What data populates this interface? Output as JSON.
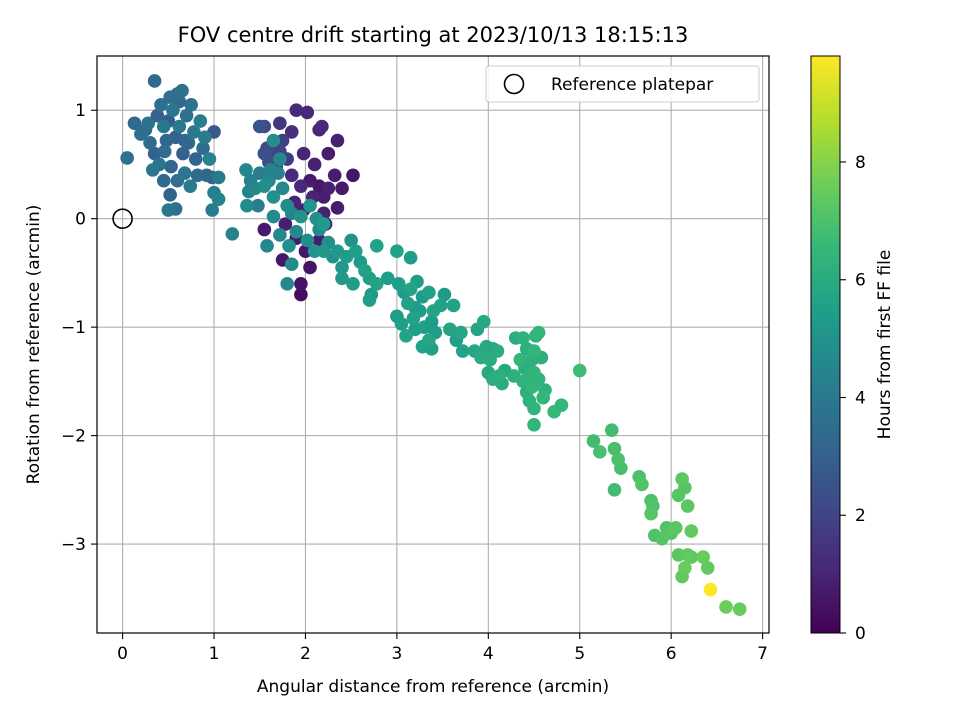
{
  "chart_data": {
    "type": "scatter",
    "title": "FOV centre drift starting at 2023/10/13 18:15:13",
    "xlabel": "Angular distance from reference (arcmin)",
    "ylabel": "Rotation from reference (arcmin)",
    "xlim": [
      -0.28,
      7.07
    ],
    "ylim": [
      -3.82,
      1.5
    ],
    "xticks": [
      0,
      1,
      2,
      3,
      4,
      5,
      6,
      7
    ],
    "yticks": [
      1,
      0,
      -1,
      -2,
      -3
    ],
    "grid": true,
    "legend": {
      "position": "top-right",
      "entries": [
        {
          "label": "Reference platepar",
          "marker": "open-circle"
        }
      ]
    },
    "reference_point": {
      "x": 0,
      "y": 0
    },
    "colorbar": {
      "label": "Hours from first FF file",
      "colormap": "viridis",
      "range": [
        0,
        9.8
      ],
      "ticks": [
        0,
        2,
        4,
        6,
        8
      ]
    },
    "points": [
      {
        "x": 0.35,
        "y": 1.27,
        "h": 3.3
      },
      {
        "x": 0.6,
        "y": 1.15,
        "h": 3.6
      },
      {
        "x": 0.65,
        "y": 1.18,
        "h": 3.7
      },
      {
        "x": 0.13,
        "y": 0.88,
        "h": 3.4
      },
      {
        "x": 0.05,
        "y": 0.56,
        "h": 3.6
      },
      {
        "x": 0.25,
        "y": 0.82,
        "h": 3.2
      },
      {
        "x": 0.3,
        "y": 0.7,
        "h": 3.4
      },
      {
        "x": 0.38,
        "y": 0.95,
        "h": 3.0
      },
      {
        "x": 0.42,
        "y": 1.05,
        "h": 3.5
      },
      {
        "x": 0.5,
        "y": 0.9,
        "h": 2.9
      },
      {
        "x": 0.55,
        "y": 1.0,
        "h": 3.8
      },
      {
        "x": 0.58,
        "y": 0.75,
        "h": 3.1
      },
      {
        "x": 0.62,
        "y": 0.85,
        "h": 3.9
      },
      {
        "x": 0.66,
        "y": 0.6,
        "h": 3.0
      },
      {
        "x": 0.7,
        "y": 0.95,
        "h": 3.6
      },
      {
        "x": 0.72,
        "y": 0.7,
        "h": 3.3
      },
      {
        "x": 0.75,
        "y": 1.05,
        "h": 3.7
      },
      {
        "x": 0.78,
        "y": 0.8,
        "h": 4.0
      },
      {
        "x": 0.8,
        "y": 0.55,
        "h": 3.2
      },
      {
        "x": 0.85,
        "y": 0.9,
        "h": 4.2
      },
      {
        "x": 0.88,
        "y": 0.65,
        "h": 3.5
      },
      {
        "x": 0.9,
        "y": 0.75,
        "h": 4.1
      },
      {
        "x": 0.92,
        "y": 0.4,
        "h": 3.3
      },
      {
        "x": 0.95,
        "y": 0.55,
        "h": 4.3
      },
      {
        "x": 0.98,
        "y": 0.38,
        "h": 3.0
      },
      {
        "x": 1.0,
        "y": 0.8,
        "h": 2.7
      },
      {
        "x": 1.05,
        "y": 0.38,
        "h": 4.0
      },
      {
        "x": 1.0,
        "y": 0.24,
        "h": 4.2
      },
      {
        "x": 0.98,
        "y": 0.08,
        "h": 4.1
      },
      {
        "x": 1.05,
        "y": 0.18,
        "h": 4.4
      },
      {
        "x": 0.58,
        "y": 0.09,
        "h": 3.6
      },
      {
        "x": 0.5,
        "y": 0.08,
        "h": 3.8
      },
      {
        "x": 0.52,
        "y": 0.22,
        "h": 3.1
      },
      {
        "x": 0.45,
        "y": 0.35,
        "h": 3.4
      },
      {
        "x": 0.4,
        "y": 0.5,
        "h": 3.7
      },
      {
        "x": 0.33,
        "y": 0.45,
        "h": 3.9
      },
      {
        "x": 0.46,
        "y": 0.62,
        "h": 3.5
      },
      {
        "x": 0.53,
        "y": 0.48,
        "h": 3.2
      },
      {
        "x": 0.6,
        "y": 0.35,
        "h": 3.6
      },
      {
        "x": 0.68,
        "y": 0.42,
        "h": 3.8
      },
      {
        "x": 0.74,
        "y": 0.3,
        "h": 4.0
      },
      {
        "x": 0.82,
        "y": 0.4,
        "h": 3.4
      },
      {
        "x": 0.48,
        "y": 0.72,
        "h": 3.3
      },
      {
        "x": 0.35,
        "y": 0.6,
        "h": 3.0
      },
      {
        "x": 0.2,
        "y": 0.78,
        "h": 3.5
      },
      {
        "x": 0.28,
        "y": 0.88,
        "h": 3.7
      },
      {
        "x": 0.45,
        "y": 0.85,
        "h": 3.9
      },
      {
        "x": 0.62,
        "y": 1.08,
        "h": 3.4
      },
      {
        "x": 0.68,
        "y": 0.72,
        "h": 3.2
      },
      {
        "x": 0.52,
        "y": 1.12,
        "h": 3.6
      },
      {
        "x": 1.2,
        "y": -0.14,
        "h": 4.4
      },
      {
        "x": 1.58,
        "y": 0.65,
        "h": 2.2
      },
      {
        "x": 1.65,
        "y": 0.7,
        "h": 1.9
      },
      {
        "x": 1.72,
        "y": 0.62,
        "h": 2.0
      },
      {
        "x": 1.8,
        "y": 0.55,
        "h": 1.7
      },
      {
        "x": 1.6,
        "y": 0.52,
        "h": 2.3
      },
      {
        "x": 1.68,
        "y": 0.48,
        "h": 2.1
      },
      {
        "x": 1.55,
        "y": 0.6,
        "h": 2.4
      },
      {
        "x": 1.75,
        "y": 0.72,
        "h": 1.8
      },
      {
        "x": 1.62,
        "y": 0.58,
        "h": 2.0
      },
      {
        "x": 1.5,
        "y": 0.85,
        "h": 2.5
      },
      {
        "x": 1.55,
        "y": 0.85,
        "h": 2.2
      },
      {
        "x": 1.72,
        "y": 0.88,
        "h": 1.5
      },
      {
        "x": 1.85,
        "y": 0.8,
        "h": 1.3
      },
      {
        "x": 1.9,
        "y": 1.0,
        "h": 1.2
      },
      {
        "x": 2.02,
        "y": 0.98,
        "h": 1.1
      },
      {
        "x": 2.15,
        "y": 0.82,
        "h": 1.0
      },
      {
        "x": 2.18,
        "y": 0.85,
        "h": 1.2
      },
      {
        "x": 2.35,
        "y": 0.72,
        "h": 0.9
      },
      {
        "x": 2.25,
        "y": 0.6,
        "h": 0.8
      },
      {
        "x": 1.98,
        "y": 0.6,
        "h": 1.0
      },
      {
        "x": 2.1,
        "y": 0.5,
        "h": 0.9
      },
      {
        "x": 2.05,
        "y": 0.35,
        "h": 0.7
      },
      {
        "x": 2.15,
        "y": 0.3,
        "h": 0.6
      },
      {
        "x": 2.2,
        "y": 0.2,
        "h": 0.8
      },
      {
        "x": 2.25,
        "y": 0.28,
        "h": 0.9
      },
      {
        "x": 2.32,
        "y": 0.4,
        "h": 0.8
      },
      {
        "x": 2.4,
        "y": 0.28,
        "h": 0.7
      },
      {
        "x": 2.52,
        "y": 0.4,
        "h": 0.6
      },
      {
        "x": 2.35,
        "y": 0.1,
        "h": 0.8
      },
      {
        "x": 2.2,
        "y": 0.05,
        "h": 0.9
      },
      {
        "x": 2.08,
        "y": 0.2,
        "h": 1.0
      },
      {
        "x": 1.95,
        "y": 0.3,
        "h": 1.1
      },
      {
        "x": 1.85,
        "y": 0.4,
        "h": 1.2
      },
      {
        "x": 1.88,
        "y": 0.15,
        "h": 1.0
      },
      {
        "x": 1.98,
        "y": 0.08,
        "h": 0.9
      },
      {
        "x": 1.78,
        "y": -0.05,
        "h": 0.8
      },
      {
        "x": 1.9,
        "y": -0.18,
        "h": 0.7
      },
      {
        "x": 2.0,
        "y": -0.3,
        "h": 0.6
      },
      {
        "x": 2.15,
        "y": -0.2,
        "h": 0.8
      },
      {
        "x": 2.22,
        "y": -0.05,
        "h": 0.7
      },
      {
        "x": 2.05,
        "y": -0.45,
        "h": 0.5
      },
      {
        "x": 1.95,
        "y": -0.7,
        "h": 0.4
      },
      {
        "x": 1.75,
        "y": -0.38,
        "h": 0.6
      },
      {
        "x": 1.55,
        "y": -0.1,
        "h": 0.7
      },
      {
        "x": 1.95,
        "y": -0.6,
        "h": 0.5
      },
      {
        "x": 1.35,
        "y": 0.45,
        "h": 4.5
      },
      {
        "x": 1.4,
        "y": 0.35,
        "h": 4.3
      },
      {
        "x": 1.45,
        "y": 0.28,
        "h": 4.6
      },
      {
        "x": 1.5,
        "y": 0.42,
        "h": 4.2
      },
      {
        "x": 1.38,
        "y": 0.25,
        "h": 4.4
      },
      {
        "x": 1.36,
        "y": 0.12,
        "h": 4.7
      },
      {
        "x": 1.48,
        "y": 0.12,
        "h": 4.1
      },
      {
        "x": 1.55,
        "y": 0.3,
        "h": 4.8
      },
      {
        "x": 1.6,
        "y": 0.35,
        "h": 4.5
      },
      {
        "x": 1.65,
        "y": 0.2,
        "h": 4.9
      },
      {
        "x": 1.7,
        "y": 0.42,
        "h": 4.3
      },
      {
        "x": 1.75,
        "y": 0.28,
        "h": 4.6
      },
      {
        "x": 1.8,
        "y": 0.12,
        "h": 4.8
      },
      {
        "x": 1.85,
        "y": 0.05,
        "h": 4.4
      },
      {
        "x": 1.65,
        "y": 0.02,
        "h": 4.7
      },
      {
        "x": 1.72,
        "y": -0.15,
        "h": 4.5
      },
      {
        "x": 1.82,
        "y": -0.25,
        "h": 4.9
      },
      {
        "x": 1.9,
        "y": -0.12,
        "h": 4.6
      },
      {
        "x": 1.95,
        "y": 0.02,
        "h": 5.0
      },
      {
        "x": 2.02,
        "y": -0.2,
        "h": 4.8
      },
      {
        "x": 2.1,
        "y": -0.3,
        "h": 5.1
      },
      {
        "x": 2.15,
        "y": -0.1,
        "h": 4.7
      },
      {
        "x": 2.2,
        "y": -0.3,
        "h": 5.2
      },
      {
        "x": 2.25,
        "y": -0.22,
        "h": 4.9
      },
      {
        "x": 2.3,
        "y": -0.35,
        "h": 5.0
      },
      {
        "x": 1.62,
        "y": 0.45,
        "h": 4.4
      },
      {
        "x": 1.72,
        "y": 0.55,
        "h": 4.6
      },
      {
        "x": 1.65,
        "y": 0.72,
        "h": 4.8
      },
      {
        "x": 2.05,
        "y": 0.12,
        "h": 5.1
      },
      {
        "x": 2.2,
        "y": -0.05,
        "h": 5.3
      },
      {
        "x": 1.85,
        "y": -0.42,
        "h": 4.7
      },
      {
        "x": 1.58,
        "y": -0.25,
        "h": 4.5
      },
      {
        "x": 1.8,
        "y": -0.6,
        "h": 4.6
      },
      {
        "x": 2.12,
        "y": 0.0,
        "h": 4.9
      },
      {
        "x": 2.35,
        "y": -0.3,
        "h": 5.3
      },
      {
        "x": 2.4,
        "y": -0.45,
        "h": 5.2
      },
      {
        "x": 2.45,
        "y": -0.35,
        "h": 5.4
      },
      {
        "x": 2.5,
        "y": -0.2,
        "h": 5.0
      },
      {
        "x": 2.55,
        "y": -0.3,
        "h": 5.5
      },
      {
        "x": 2.6,
        "y": -0.4,
        "h": 5.3
      },
      {
        "x": 2.65,
        "y": -0.48,
        "h": 5.6
      },
      {
        "x": 2.52,
        "y": -0.6,
        "h": 5.4
      },
      {
        "x": 2.4,
        "y": -0.55,
        "h": 5.2
      },
      {
        "x": 2.7,
        "y": -0.55,
        "h": 5.5
      },
      {
        "x": 2.78,
        "y": -0.25,
        "h": 5.6
      },
      {
        "x": 2.9,
        "y": -0.55,
        "h": 5.4
      },
      {
        "x": 2.72,
        "y": -0.7,
        "h": 5.3
      },
      {
        "x": 2.78,
        "y": -0.6,
        "h": 5.7
      },
      {
        "x": 2.7,
        "y": -0.75,
        "h": 5.5
      },
      {
        "x": 3.0,
        "y": -0.3,
        "h": 5.6
      },
      {
        "x": 3.15,
        "y": -0.36,
        "h": 5.4
      },
      {
        "x": 3.02,
        "y": -0.6,
        "h": 5.5
      },
      {
        "x": 3.08,
        "y": -0.68,
        "h": 5.3
      },
      {
        "x": 3.12,
        "y": -0.78,
        "h": 5.6
      },
      {
        "x": 3.2,
        "y": -0.82,
        "h": 5.4
      },
      {
        "x": 3.15,
        "y": -0.65,
        "h": 5.7
      },
      {
        "x": 3.22,
        "y": -0.58,
        "h": 5.5
      },
      {
        "x": 3.28,
        "y": -0.72,
        "h": 5.3
      },
      {
        "x": 3.35,
        "y": -0.68,
        "h": 5.6
      },
      {
        "x": 3.0,
        "y": -0.9,
        "h": 5.4
      },
      {
        "x": 3.05,
        "y": -0.97,
        "h": 5.5
      },
      {
        "x": 3.1,
        "y": -1.08,
        "h": 5.7
      },
      {
        "x": 3.18,
        "y": -0.92,
        "h": 5.6
      },
      {
        "x": 3.25,
        "y": -0.85,
        "h": 5.4
      },
      {
        "x": 3.3,
        "y": -1.0,
        "h": 5.5
      },
      {
        "x": 3.38,
        "y": -0.95,
        "h": 5.3
      },
      {
        "x": 3.28,
        "y": -1.18,
        "h": 5.6
      },
      {
        "x": 3.35,
        "y": -1.12,
        "h": 5.8
      },
      {
        "x": 3.38,
        "y": -1.2,
        "h": 5.5
      },
      {
        "x": 3.4,
        "y": -0.85,
        "h": 5.7
      },
      {
        "x": 3.42,
        "y": -1.05,
        "h": 5.4
      },
      {
        "x": 3.48,
        "y": -0.8,
        "h": 5.6
      },
      {
        "x": 3.2,
        "y": -1.02,
        "h": 5.5
      },
      {
        "x": 3.52,
        "y": -0.7,
        "h": 5.3
      },
      {
        "x": 3.62,
        "y": -0.8,
        "h": 5.6
      },
      {
        "x": 3.58,
        "y": -1.02,
        "h": 5.7
      },
      {
        "x": 3.65,
        "y": -1.12,
        "h": 5.5
      },
      {
        "x": 3.72,
        "y": -1.22,
        "h": 5.6
      },
      {
        "x": 3.7,
        "y": -1.05,
        "h": 5.8
      },
      {
        "x": 3.88,
        "y": -1.02,
        "h": 5.7
      },
      {
        "x": 3.95,
        "y": -0.95,
        "h": 5.9
      },
      {
        "x": 3.85,
        "y": -1.22,
        "h": 5.8
      },
      {
        "x": 3.92,
        "y": -1.28,
        "h": 6.0
      },
      {
        "x": 3.98,
        "y": -1.18,
        "h": 5.9
      },
      {
        "x": 4.02,
        "y": -1.3,
        "h": 6.1
      },
      {
        "x": 4.05,
        "y": -1.2,
        "h": 5.8
      },
      {
        "x": 4.1,
        "y": -1.22,
        "h": 6.0
      },
      {
        "x": 4.0,
        "y": -1.42,
        "h": 5.9
      },
      {
        "x": 4.05,
        "y": -1.48,
        "h": 6.1
      },
      {
        "x": 4.12,
        "y": -1.45,
        "h": 6.2
      },
      {
        "x": 4.18,
        "y": -1.4,
        "h": 5.9
      },
      {
        "x": 4.15,
        "y": -1.52,
        "h": 6.0
      },
      {
        "x": 4.28,
        "y": -1.45,
        "h": 6.2
      },
      {
        "x": 4.3,
        "y": -1.1,
        "h": 6.1
      },
      {
        "x": 4.38,
        "y": -1.1,
        "h": 6.3
      },
      {
        "x": 4.42,
        "y": -1.2,
        "h": 6.2
      },
      {
        "x": 4.35,
        "y": -1.3,
        "h": 6.4
      },
      {
        "x": 4.4,
        "y": -1.38,
        "h": 6.1
      },
      {
        "x": 4.45,
        "y": -1.45,
        "h": 6.3
      },
      {
        "x": 4.48,
        "y": -1.3,
        "h": 6.2
      },
      {
        "x": 4.5,
        "y": -1.22,
        "h": 6.4
      },
      {
        "x": 4.52,
        "y": -1.08,
        "h": 6.3
      },
      {
        "x": 4.55,
        "y": -1.05,
        "h": 6.5
      },
      {
        "x": 4.58,
        "y": -1.28,
        "h": 6.2
      },
      {
        "x": 4.5,
        "y": -1.42,
        "h": 6.4
      },
      {
        "x": 4.55,
        "y": -1.48,
        "h": 6.3
      },
      {
        "x": 4.48,
        "y": -1.55,
        "h": 6.5
      },
      {
        "x": 4.42,
        "y": -1.6,
        "h": 6.2
      },
      {
        "x": 4.45,
        "y": -1.68,
        "h": 6.3
      },
      {
        "x": 4.5,
        "y": -1.75,
        "h": 6.4
      },
      {
        "x": 4.6,
        "y": -1.65,
        "h": 6.5
      },
      {
        "x": 4.62,
        "y": -1.58,
        "h": 6.3
      },
      {
        "x": 4.72,
        "y": -1.78,
        "h": 6.6
      },
      {
        "x": 4.8,
        "y": -1.72,
        "h": 6.5
      },
      {
        "x": 4.5,
        "y": -1.9,
        "h": 6.4
      },
      {
        "x": 4.38,
        "y": -1.5,
        "h": 6.3
      },
      {
        "x": 5.0,
        "y": -1.4,
        "h": 6.7
      },
      {
        "x": 5.15,
        "y": -2.05,
        "h": 6.8
      },
      {
        "x": 5.22,
        "y": -2.15,
        "h": 6.9
      },
      {
        "x": 5.35,
        "y": -1.95,
        "h": 6.8
      },
      {
        "x": 5.38,
        "y": -2.12,
        "h": 6.9
      },
      {
        "x": 5.42,
        "y": -2.22,
        "h": 7.0
      },
      {
        "x": 5.45,
        "y": -2.3,
        "h": 6.9
      },
      {
        "x": 5.38,
        "y": -2.5,
        "h": 6.8
      },
      {
        "x": 5.65,
        "y": -2.38,
        "h": 7.0
      },
      {
        "x": 5.68,
        "y": -2.45,
        "h": 7.1
      },
      {
        "x": 5.78,
        "y": -2.6,
        "h": 7.0
      },
      {
        "x": 5.8,
        "y": -2.65,
        "h": 7.1
      },
      {
        "x": 5.78,
        "y": -2.72,
        "h": 7.2
      },
      {
        "x": 5.82,
        "y": -2.92,
        "h": 7.1
      },
      {
        "x": 5.9,
        "y": -2.95,
        "h": 7.2
      },
      {
        "x": 5.95,
        "y": -2.85,
        "h": 7.1
      },
      {
        "x": 6.0,
        "y": -2.9,
        "h": 7.2
      },
      {
        "x": 6.05,
        "y": -2.85,
        "h": 7.3
      },
      {
        "x": 6.08,
        "y": -2.55,
        "h": 7.2
      },
      {
        "x": 6.12,
        "y": -2.4,
        "h": 7.3
      },
      {
        "x": 6.15,
        "y": -2.48,
        "h": 7.2
      },
      {
        "x": 6.18,
        "y": -2.65,
        "h": 7.3
      },
      {
        "x": 6.22,
        "y": -2.88,
        "h": 7.4
      },
      {
        "x": 6.08,
        "y": -3.1,
        "h": 7.3
      },
      {
        "x": 6.18,
        "y": -3.1,
        "h": 7.4
      },
      {
        "x": 6.22,
        "y": -3.12,
        "h": 7.3
      },
      {
        "x": 6.15,
        "y": -3.22,
        "h": 7.5
      },
      {
        "x": 6.12,
        "y": -3.3,
        "h": 7.4
      },
      {
        "x": 6.35,
        "y": -3.12,
        "h": 7.5
      },
      {
        "x": 6.4,
        "y": -3.22,
        "h": 7.4
      },
      {
        "x": 6.6,
        "y": -3.58,
        "h": 7.6
      },
      {
        "x": 6.75,
        "y": -3.6,
        "h": 7.5
      },
      {
        "x": 6.43,
        "y": -3.42,
        "h": 9.8
      }
    ]
  }
}
